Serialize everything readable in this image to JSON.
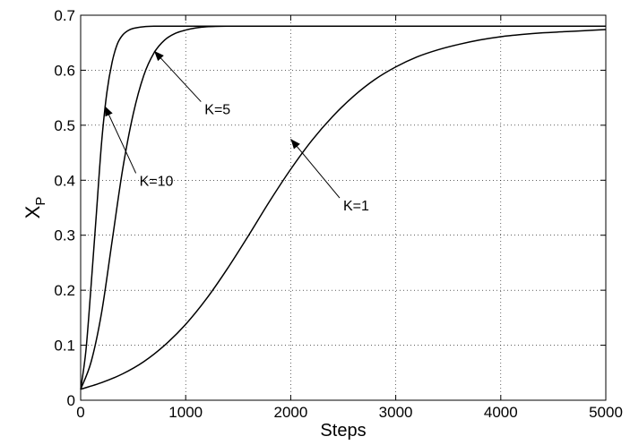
{
  "chart_data": {
    "type": "line",
    "xlabel": "Steps",
    "ylabel": "X",
    "ylabel_sub": "P",
    "xlim": [
      0,
      5000
    ],
    "ylim": [
      0,
      0.7
    ],
    "xticks": [
      0,
      1000,
      2000,
      3000,
      4000,
      5000
    ],
    "yticks": [
      0,
      0.1,
      0.2,
      0.3,
      0.4,
      0.5,
      0.6,
      0.7
    ],
    "xtick_labels": [
      "0",
      "1000",
      "2000",
      "3000",
      "4000",
      "5000"
    ],
    "ytick_labels": [
      "0",
      "0.1",
      "0.2",
      "0.3",
      "0.4",
      "0.5",
      "0.6",
      "0.7"
    ],
    "grid": true,
    "line_color": "#000000",
    "series": [
      {
        "name": "K=1",
        "x": [
          0,
          200,
          400,
          600,
          800,
          1000,
          1200,
          1400,
          1600,
          1800,
          2000,
          2200,
          2400,
          2600,
          2800,
          3000,
          3200,
          3400,
          3600,
          3800,
          4000,
          4200,
          4400,
          4600,
          4800,
          5000
        ],
        "y": [
          0.02,
          0.032,
          0.048,
          0.07,
          0.1,
          0.138,
          0.185,
          0.24,
          0.3,
          0.362,
          0.42,
          0.472,
          0.516,
          0.553,
          0.583,
          0.606,
          0.624,
          0.637,
          0.647,
          0.655,
          0.661,
          0.665,
          0.668,
          0.67,
          0.672,
          0.674
        ]
      },
      {
        "name": "K=5",
        "x": [
          0,
          100,
          200,
          300,
          400,
          500,
          600,
          700,
          800,
          900,
          1000,
          1100,
          1200,
          1400,
          1600,
          2000,
          3000,
          4000,
          5000
        ],
        "y": [
          0.02,
          0.07,
          0.16,
          0.29,
          0.42,
          0.52,
          0.59,
          0.632,
          0.655,
          0.667,
          0.673,
          0.677,
          0.679,
          0.68,
          0.68,
          0.68,
          0.68,
          0.68,
          0.68
        ]
      },
      {
        "name": "K=10",
        "x": [
          0,
          50,
          100,
          150,
          200,
          250,
          300,
          350,
          400,
          450,
          500,
          600,
          700,
          800,
          1000,
          1500,
          2000,
          3000,
          4000,
          5000
        ],
        "y": [
          0.02,
          0.09,
          0.21,
          0.34,
          0.47,
          0.56,
          0.615,
          0.648,
          0.664,
          0.672,
          0.676,
          0.679,
          0.68,
          0.68,
          0.68,
          0.68,
          0.68,
          0.68,
          0.68,
          0.68
        ]
      }
    ],
    "annotations": [
      {
        "text": "K=10",
        "point": [
          230,
          0.535
        ],
        "text_at": [
          560,
          0.39
        ]
      },
      {
        "text": "K=5",
        "point": [
          700,
          0.635
        ],
        "text_at": [
          1180,
          0.52
        ]
      },
      {
        "text": "K=1",
        "point": [
          2000,
          0.475
        ],
        "text_at": [
          2500,
          0.345
        ]
      }
    ]
  }
}
